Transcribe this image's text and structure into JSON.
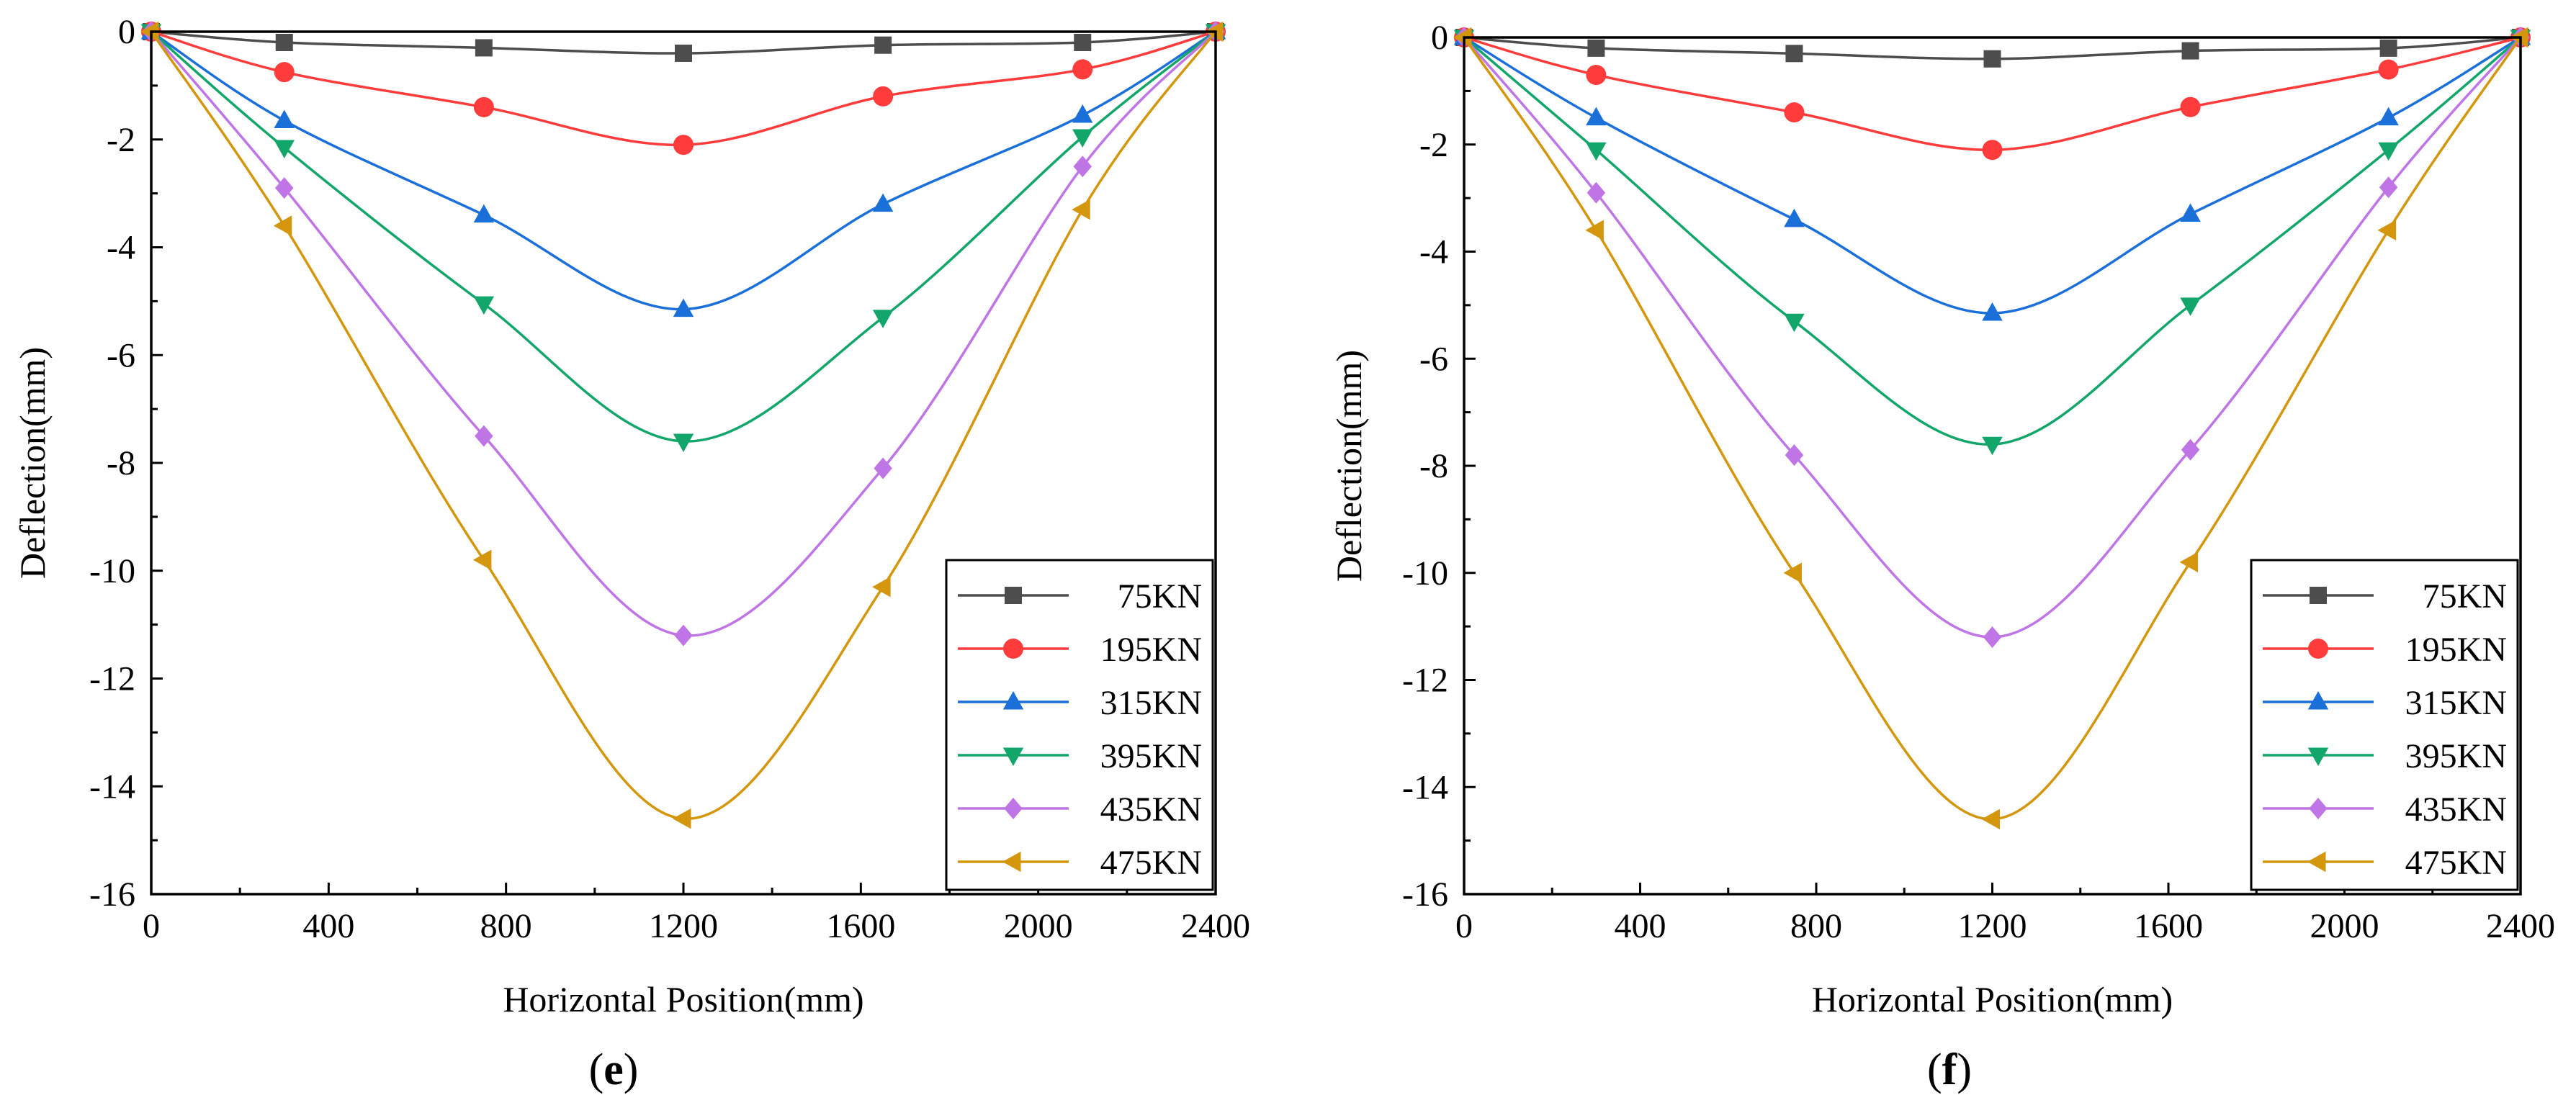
{
  "figure": {
    "panels": [
      {
        "id": "e",
        "caption_open": "(",
        "caption_letter": "e",
        "caption_close": ")"
      },
      {
        "id": "f",
        "caption_open": "(",
        "caption_letter": "f",
        "caption_close": ")"
      }
    ]
  },
  "chart_data": [
    {
      "type": "line",
      "panel": "e",
      "title": "",
      "xlabel": "Horizontal Position(mm)",
      "ylabel": "Deflection(mm)",
      "xlim": [
        0,
        2400
      ],
      "ylim": [
        -16,
        0
      ],
      "xticks": [
        0,
        400,
        800,
        1200,
        1600,
        2000,
        2400
      ],
      "yticks": [
        0,
        -2,
        -4,
        -6,
        -8,
        -10,
        -12,
        -14,
        -16
      ],
      "legend_position": "bottom-right",
      "x": [
        0,
        300,
        750,
        1200,
        1650,
        2100,
        2400
      ],
      "series": [
        {
          "name": "75KN",
          "color": "#4d4d4d",
          "marker": "square",
          "values": [
            0,
            -0.2,
            -0.3,
            -0.4,
            -0.25,
            -0.2,
            0
          ]
        },
        {
          "name": "195KN",
          "color": "#ff3b3b",
          "marker": "circle",
          "values": [
            0,
            -0.75,
            -1.4,
            -2.1,
            -1.2,
            -0.7,
            0
          ]
        },
        {
          "name": "315KN",
          "color": "#1a6fd9",
          "marker": "triangle-up",
          "values": [
            0,
            -1.65,
            -3.4,
            -5.15,
            -3.2,
            -1.55,
            0
          ]
        },
        {
          "name": "395KN",
          "color": "#13a66b",
          "marker": "triangle-down",
          "values": [
            0,
            -2.15,
            -5.05,
            -7.6,
            -5.3,
            -1.95,
            0
          ]
        },
        {
          "name": "435KN",
          "color": "#c075e6",
          "marker": "diamond",
          "values": [
            0,
            -2.9,
            -7.5,
            -11.2,
            -8.1,
            -2.5,
            0
          ]
        },
        {
          "name": "475KN",
          "color": "#d4960c",
          "marker": "triangle-left",
          "values": [
            0,
            -3.6,
            -9.8,
            -14.6,
            -10.3,
            -3.3,
            0
          ]
        }
      ]
    },
    {
      "type": "line",
      "panel": "f",
      "title": "",
      "xlabel": "Horizontal Position(mm)",
      "ylabel": "Deflection(mm)",
      "xlim": [
        0,
        2400
      ],
      "ylim": [
        -16,
        0
      ],
      "xticks": [
        0,
        400,
        800,
        1200,
        1600,
        2000,
        2400
      ],
      "yticks": [
        0,
        -2,
        -4,
        -6,
        -8,
        -10,
        -12,
        -14,
        -16
      ],
      "legend_position": "bottom-right",
      "x": [
        0,
        300,
        750,
        1200,
        1650,
        2100,
        2400
      ],
      "series": [
        {
          "name": "75KN",
          "color": "#4d4d4d",
          "marker": "square",
          "values": [
            0,
            -0.2,
            -0.3,
            -0.4,
            -0.25,
            -0.2,
            0
          ]
        },
        {
          "name": "195KN",
          "color": "#ff3b3b",
          "marker": "circle",
          "values": [
            0,
            -0.7,
            -1.4,
            -2.1,
            -1.3,
            -0.6,
            0
          ]
        },
        {
          "name": "315KN",
          "color": "#1a6fd9",
          "marker": "triangle-up",
          "values": [
            0,
            -1.5,
            -3.4,
            -5.15,
            -3.3,
            -1.5,
            0
          ]
        },
        {
          "name": "395KN",
          "color": "#13a66b",
          "marker": "triangle-down",
          "values": [
            0,
            -2.1,
            -5.3,
            -7.6,
            -5.0,
            -2.1,
            0
          ]
        },
        {
          "name": "435KN",
          "color": "#c075e6",
          "marker": "diamond",
          "values": [
            0,
            -2.9,
            -7.8,
            -11.2,
            -7.7,
            -2.8,
            0
          ]
        },
        {
          "name": "475KN",
          "color": "#d4960c",
          "marker": "triangle-left",
          "values": [
            0,
            -3.6,
            -10.0,
            -14.6,
            -9.8,
            -3.6,
            0
          ]
        }
      ]
    }
  ]
}
